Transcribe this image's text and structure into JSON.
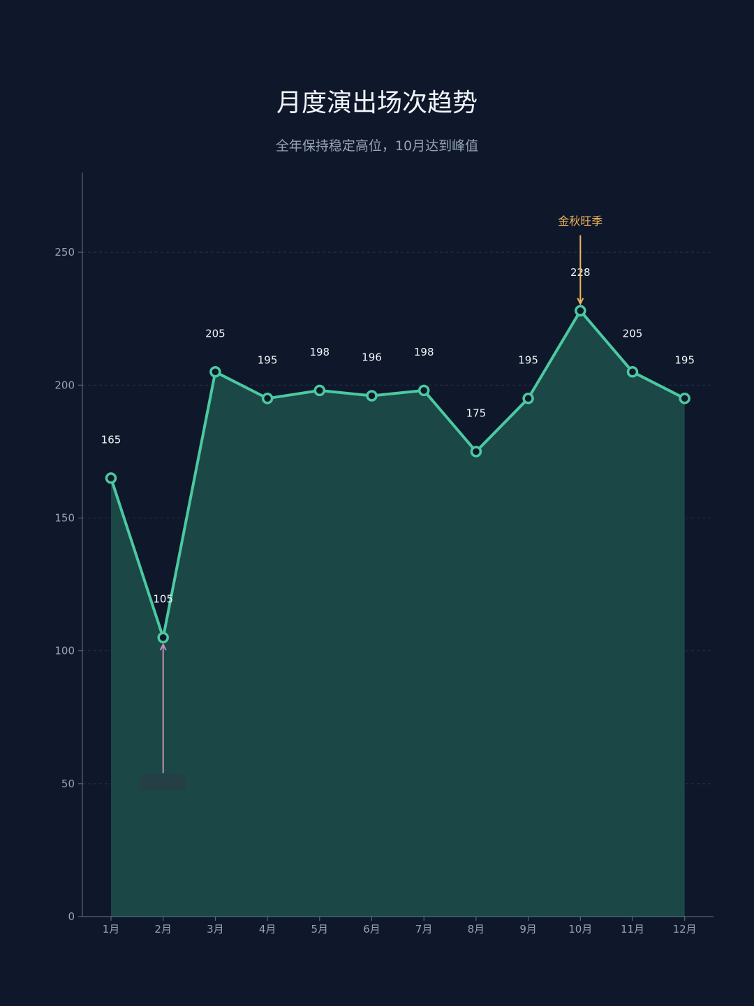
{
  "chart_data": {
    "type": "area",
    "title": "月度演出场次趋势",
    "subtitle": "全年保持稳定高位，10月达到峰值",
    "categories": [
      "1月",
      "2月",
      "3月",
      "4月",
      "5月",
      "6月",
      "7月",
      "8月",
      "9月",
      "10月",
      "11月",
      "12月"
    ],
    "values": [
      165,
      105,
      205,
      195,
      198,
      196,
      198,
      175,
      195,
      228,
      205,
      195
    ],
    "ylim": [
      0,
      280
    ],
    "yticks": [
      0,
      50,
      100,
      150,
      200,
      250
    ],
    "grid": true,
    "annotations": [
      {
        "category": "10月",
        "value": 228,
        "text": "金秋旺季",
        "color": "#f0b75a"
      },
      {
        "category": "2月",
        "value": 105,
        "text": "",
        "color": "#c48fb8"
      }
    ],
    "colors": {
      "line": "#4bc9a0",
      "area": "#1b4747",
      "background": "#0f172a",
      "grid": "#263449",
      "axis": "#64748b",
      "text": "#f1f5f9"
    }
  }
}
